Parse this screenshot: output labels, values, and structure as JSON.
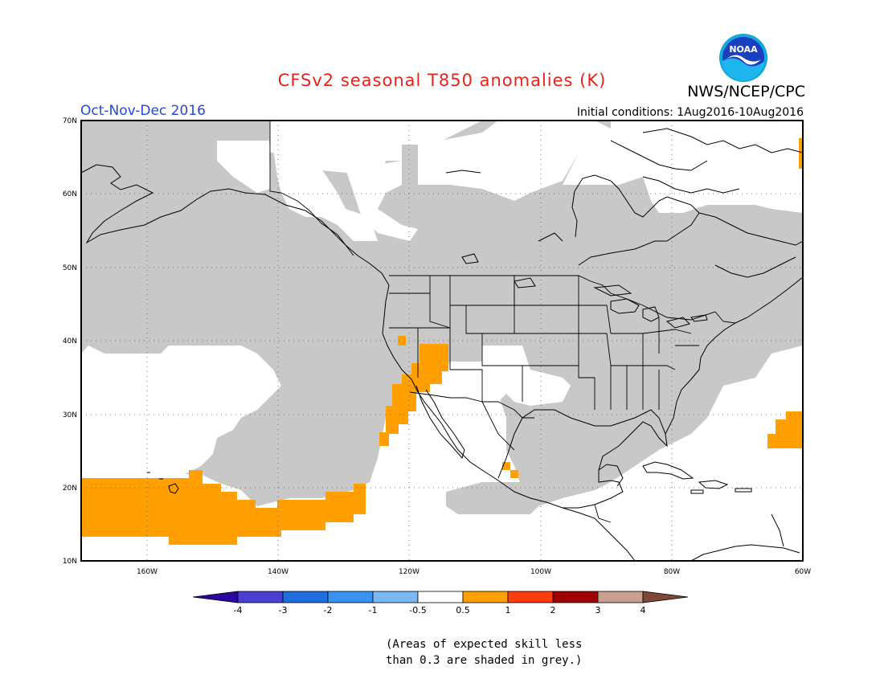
{
  "header": {
    "title": "CFSv2 seasonal T850 anomalies (K)",
    "agency": "NWS/NCEP/CPC",
    "period": "Oct-Nov-Dec 2016",
    "initial_conditions": "Initial conditions: 1Aug2016-10Aug2016",
    "logo_text": "NOAA"
  },
  "map": {
    "lat_labels": [
      "70N",
      "60N",
      "50N",
      "40N",
      "30N",
      "20N",
      "10N"
    ],
    "lon_labels": [
      "160W",
      "140W",
      "120W",
      "100W",
      "80W",
      "60W"
    ],
    "extent": {
      "lon": [
        -170,
        -60
      ],
      "lat": [
        10,
        70
      ]
    },
    "grid": true,
    "colors": {
      "skill_mask": "#c8c8c8",
      "warm_anomaly": "#ffa000",
      "land_outline": "#000000",
      "background": "#ffffff"
    },
    "orange_regions": [
      "Central North Pacific south of Hawaii (10N-20N)",
      "Lower Colorado River basin / Southern California coast",
      "Western Atlantic east of Bahamas",
      "Far north-east Canada edge"
    ]
  },
  "colorbar": {
    "labels": [
      "-4",
      "-3",
      "-2",
      "-1",
      "-0.5",
      "0.5",
      "1",
      "2",
      "3",
      "4"
    ],
    "colors": [
      "#2a07a0",
      "#4a3fd0",
      "#1e6ee0",
      "#3a92f0",
      "#7ab8f5",
      "#ffffff",
      "#ffa000",
      "#ff3d0e",
      "#a00000",
      "#c8a090",
      "#804838"
    ]
  },
  "note": {
    "line1": "(Areas of expected skill less",
    "line2": "than 0.3 are shaded in grey.)"
  }
}
